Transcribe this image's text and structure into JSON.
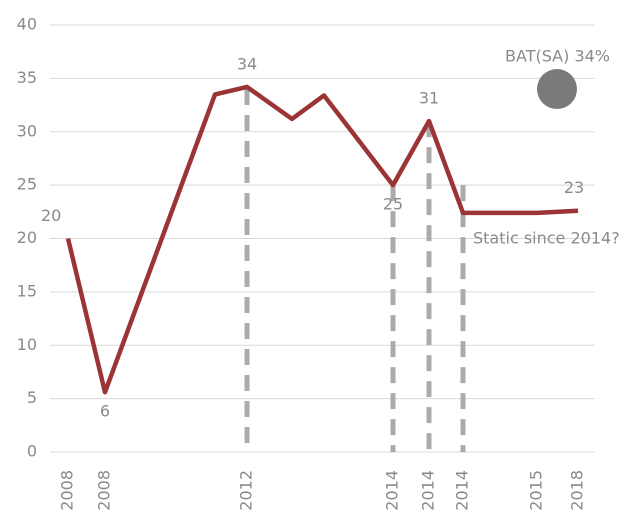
{
  "chart_data": {
    "type": "line",
    "categories": [
      "2008",
      "2008",
      null,
      "2012",
      null,
      null,
      "2014",
      "2014",
      "2014",
      "2015",
      "2018"
    ],
    "series": [
      {
        "color": "#9b3535",
        "values": [
          20,
          5.6,
          33.5,
          34.2,
          31.2,
          33.4,
          25,
          31,
          22.4,
          22.4,
          22.6
        ],
        "value_labels": [
          "20",
          "6",
          null,
          "34",
          null,
          null,
          "25",
          "31",
          null,
          null,
          "23"
        ]
      }
    ],
    "drop_lines": {
      "color": "#ababab",
      "values": [
        34,
        25,
        31,
        25
      ]
    },
    "ylim": [
      0,
      40
    ],
    "yticks": [
      0,
      5,
      10,
      15,
      20,
      25,
      30,
      35,
      40
    ],
    "grid": true,
    "annotations": [
      {
        "text": "BAT(SA) 34%",
        "value": 34,
        "color": "#7a7a7a"
      },
      {
        "text": "Static since 2014?"
      }
    ]
  }
}
